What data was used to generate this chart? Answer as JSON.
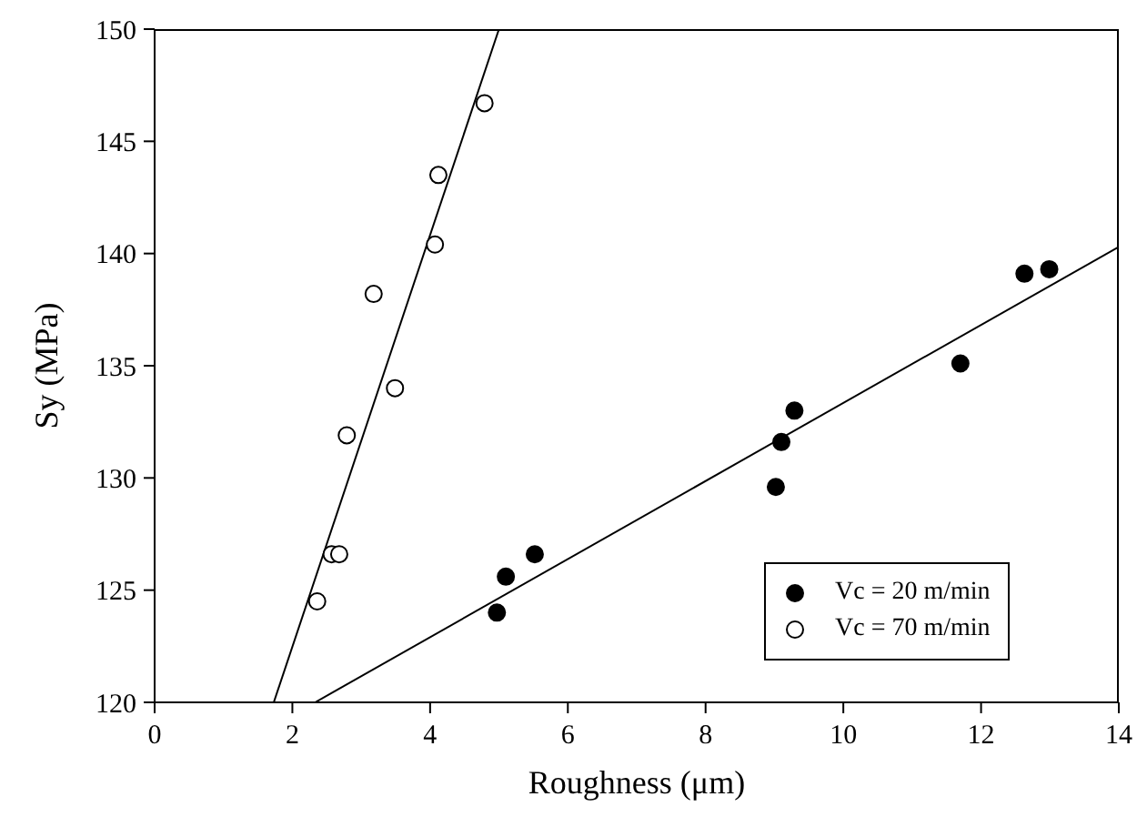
{
  "chart_data": {
    "type": "scatter",
    "xlabel": "Roughness (μm)",
    "ylabel": "Sy (MPa)",
    "xlim": [
      0,
      14
    ],
    "xticks": [
      0,
      2,
      4,
      6,
      8,
      10,
      12,
      14
    ],
    "ylim": [
      120,
      150
    ],
    "yticks": [
      120,
      125,
      130,
      135,
      140,
      145,
      150
    ],
    "legend": "bottom right",
    "marker": "circle",
    "series": [
      {
        "name": "Vc = 20 m/min",
        "color": "#000000",
        "x": [
          4.97,
          5.1,
          5.52,
          9.02,
          9.1,
          9.29,
          11.7,
          12.63,
          12.99
        ],
        "values": [
          124.0,
          125.6,
          126.6,
          129.6,
          131.6,
          133.0,
          135.1,
          139.1,
          139.3
        ]
      },
      {
        "name": "Vc = 70 m/min",
        "color": "#ffffff",
        "x": [
          2.36,
          2.57,
          2.68,
          2.79,
          3.49,
          3.18,
          4.07,
          4.12,
          4.79
        ],
        "values": [
          124.5,
          126.6,
          126.6,
          131.9,
          134.0,
          138.2,
          140.4,
          143.5,
          146.7
        ]
      },
      {
        "type": "line",
        "color": "#000000",
        "marker": "none",
        "x": [
          2.33,
          14
        ],
        "values": [
          120,
          140.3
        ]
      },
      {
        "type": "line",
        "color": "#000000",
        "marker": "none",
        "x": [
          1.73,
          5.0
        ],
        "values": [
          120,
          150
        ]
      }
    ]
  }
}
